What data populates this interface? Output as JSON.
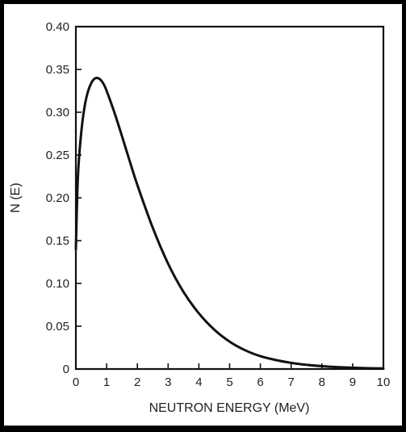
{
  "chart_data": {
    "type": "line",
    "title": "",
    "xlabel": "NEUTRON ENERGY (MeV)",
    "ylabel": "N (E)",
    "xlim": [
      0,
      10
    ],
    "ylim": [
      0,
      0.4
    ],
    "x_ticks": [
      "0",
      "1",
      "2",
      "3",
      "4",
      "5",
      "6",
      "7",
      "8",
      "9",
      "10"
    ],
    "y_ticks": [
      "0",
      "0.05",
      "0.10",
      "0.15",
      "0.20",
      "0.25",
      "0.30",
      "0.35",
      "0.40"
    ],
    "grid": false,
    "legend": "none",
    "series": [
      {
        "x": [
          0,
          0.05,
          0.1,
          0.2,
          0.3,
          0.4,
          0.5,
          0.6,
          0.7,
          0.8,
          0.9,
          1.0,
          1.25,
          1.5,
          1.75,
          2.0,
          2.5,
          3.0,
          3.5,
          4.0,
          4.5,
          5.0,
          5.5,
          6.0,
          6.5,
          7.0,
          7.5,
          8.0,
          8.5,
          9.0,
          9.5,
          10.0
        ],
        "y": [
          0.14,
          0.21,
          0.245,
          0.285,
          0.31,
          0.325,
          0.334,
          0.339,
          0.34,
          0.338,
          0.333,
          0.325,
          0.3,
          0.272,
          0.243,
          0.215,
          0.165,
          0.123,
          0.09,
          0.065,
          0.046,
          0.032,
          0.022,
          0.015,
          0.0105,
          0.0072,
          0.0049,
          0.0033,
          0.0022,
          0.0015,
          0.001,
          0.0007
        ]
      }
    ],
    "colors": {
      "line": "#111111",
      "frame": "#111111",
      "background": "#ffffff",
      "border": "#000000"
    }
  }
}
